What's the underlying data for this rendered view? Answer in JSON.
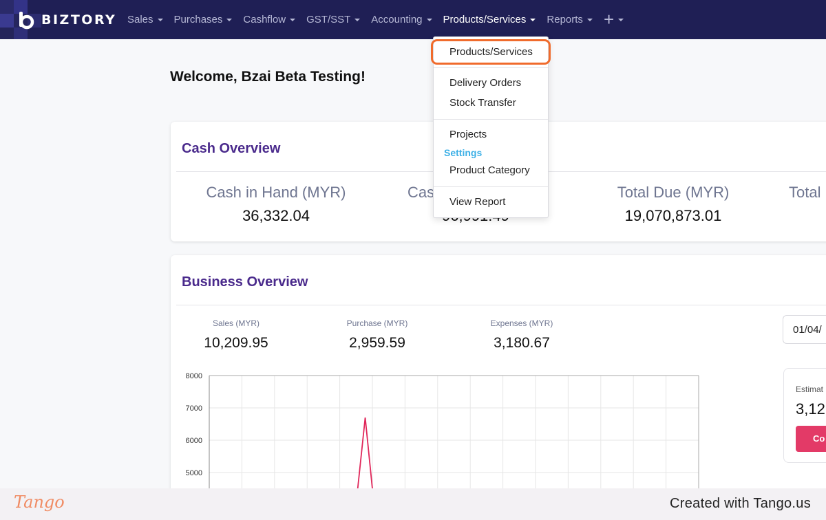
{
  "app": {
    "brand": "BIZTORY",
    "colors": {
      "nav_bg": "#1f1f55",
      "accent_purple": "#4a2a8c",
      "highlight": "#f06b2c",
      "button": "#e33a67",
      "settings_header": "#3db0e6"
    }
  },
  "nav": {
    "items": [
      {
        "label": "Sales"
      },
      {
        "label": "Purchases"
      },
      {
        "label": "Cashflow"
      },
      {
        "label": "GST/SST"
      },
      {
        "label": "Accounting"
      },
      {
        "label": "Products/Services",
        "active": true
      },
      {
        "label": "Reports"
      }
    ],
    "add_icon": "plus-icon"
  },
  "welcome": "Welcome, Bzai Beta Testing!",
  "dropdown": {
    "items": {
      "products_services": "Products/Services",
      "delivery_orders": "Delivery Orders",
      "stock_transfer": "Stock Transfer",
      "projects": "Projects",
      "settings_header": "Settings",
      "product_category": "Product Category",
      "view_report": "View Report"
    }
  },
  "cash_overview": {
    "title": "Cash Overview",
    "cols": [
      {
        "label": "Cash in Hand (MYR)",
        "value": "36,332.04"
      },
      {
        "label": "Cas",
        "value": "96,991.49"
      },
      {
        "label": "Total Due (MYR)",
        "value": "19,070,873.01"
      },
      {
        "label": "Total"
      }
    ]
  },
  "business_overview": {
    "title": "Business Overview",
    "stats": [
      {
        "label": "Sales (MYR)",
        "value": "10,209.95"
      },
      {
        "label": "Purchase (MYR)",
        "value": "2,959.59"
      },
      {
        "label": "Expenses (MYR)",
        "value": "3,180.67"
      }
    ],
    "date_value": "01/04/",
    "estimate": {
      "label": "Estimat",
      "value": "3,12",
      "button": "Co"
    }
  },
  "chart_data": {
    "type": "line",
    "yticks": [
      8000,
      7000,
      6000,
      5000
    ],
    "ylim": [
      4500,
      8000
    ],
    "series": [
      {
        "x": [
          4.55,
          4.78,
          5.0
        ],
        "values": [
          4500,
          6700,
          4500
        ]
      }
    ],
    "xlim": [
      0,
      15
    ],
    "grid": true,
    "line_color": "#e0275a"
  },
  "footer": {
    "logo": "Tango",
    "credit": "Created with Tango.us"
  }
}
